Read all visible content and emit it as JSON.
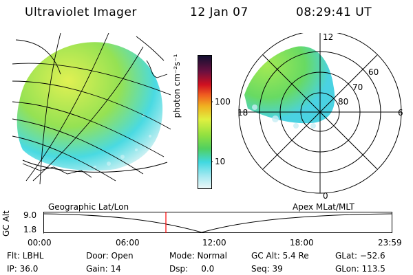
{
  "header": {
    "title": "Ultraviolet Imager",
    "date": "12 Jan 07",
    "time": "08:29:41 UT"
  },
  "colorbar": {
    "unit_text": "photon cm⁻²s⁻¹",
    "ticks": [
      "100",
      "10"
    ],
    "scale": "log"
  },
  "polar": {
    "labels": {
      "top": "12",
      "bottom": "0",
      "left": "18",
      "right": "6"
    },
    "lat_labels": [
      "60",
      "70",
      "80"
    ]
  },
  "timeline": {
    "left_title": "Geographic Lat/Lon",
    "right_title": "Apex MLat/MLT",
    "y_axis_label": "GC Alt",
    "y_ticks": [
      "9.0",
      "1.8"
    ],
    "x_ticks": [
      "00:00",
      "06:00",
      "12:00",
      "18:00",
      "23:59"
    ],
    "marker_time": "08:29:41",
    "marker_color": "#ff0000"
  },
  "info": {
    "row1": {
      "flt": "Flt: LBHL",
      "door": "Door: Open",
      "mode": "Mode: Normal",
      "gcalt": "GC Alt: 5.4 Re",
      "glat": "GLat: −52.6"
    },
    "row2": {
      "ip": "IP: 36.0",
      "gain": "Gain: 14",
      "dsp": "Dsp:     0.0",
      "seq": "Seq: 39",
      "glon": "GLon: 113.5"
    }
  },
  "colors": {
    "aurora_green": "#8fe04a",
    "aurora_yellow": "#e6f040",
    "aurora_cyan": "#40d8e0",
    "colorbar_top": "#202040",
    "colorbar_red": "#d01020",
    "colorbar_orange": "#f0a020"
  }
}
